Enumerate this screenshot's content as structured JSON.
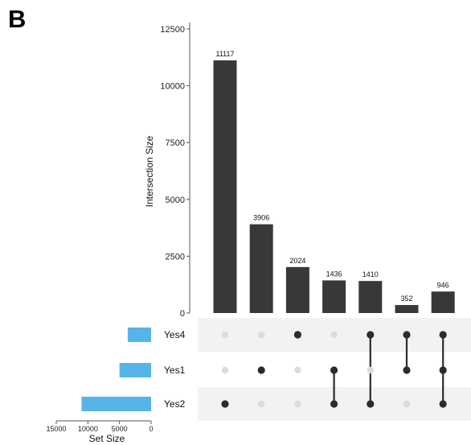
{
  "panel_label": "B",
  "chart_data": {
    "type": "bar",
    "subtype": "upset",
    "ylabel": "Intersection Size",
    "ylim": [
      0,
      12500
    ],
    "yticks": [
      0,
      2500,
      5000,
      7500,
      10000,
      12500
    ],
    "intersections": [
      {
        "value": 11117,
        "label": "11117",
        "sets": [
          "Yes2"
        ]
      },
      {
        "value": 3906,
        "label": "3906",
        "sets": [
          "Yes1"
        ]
      },
      {
        "value": 2024,
        "label": "2024",
        "sets": [
          "Yes4"
        ]
      },
      {
        "value": 1436,
        "label": "1436",
        "sets": [
          "Yes1",
          "Yes2"
        ]
      },
      {
        "value": 1410,
        "label": "1410",
        "sets": [
          "Yes4",
          "Yes2"
        ]
      },
      {
        "value": 352,
        "label": "352",
        "sets": [
          "Yes4",
          "Yes1"
        ]
      },
      {
        "value": 946,
        "label": "946",
        "sets": [
          "Yes4",
          "Yes1",
          "Yes2"
        ]
      }
    ],
    "sets": [
      {
        "name": "Yes4",
        "size": 3700
      },
      {
        "name": "Yes1",
        "size": 5000
      },
      {
        "name": "Yes2",
        "size": 11000
      }
    ],
    "set_size_xlabel": "Set Size",
    "set_size_ticks": [
      15000,
      10000,
      5000,
      0
    ],
    "colors": {
      "bar": "#383838",
      "set_bar": "#56b4e9",
      "dot_active": "#2b2b2b",
      "dot_inactive": "#dcdcdc",
      "stripe": "#f2f2f2"
    }
  }
}
